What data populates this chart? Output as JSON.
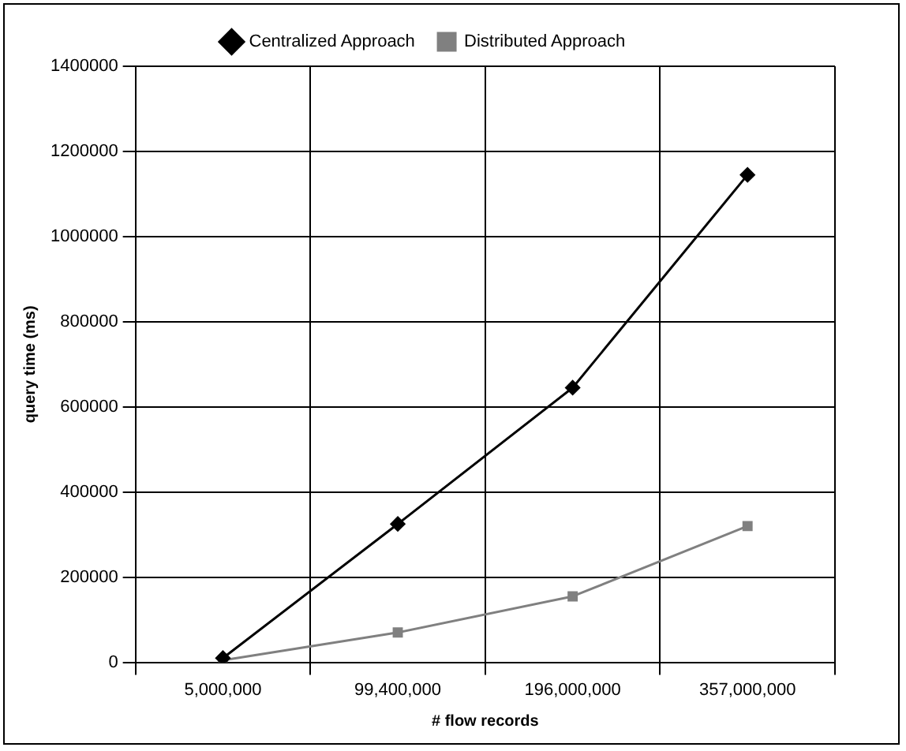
{
  "chart_data": {
    "type": "line",
    "xlabel": "# flow records",
    "ylabel": "query time (ms)",
    "categories": [
      "5,000,000",
      "99,400,000",
      "196,000,000",
      "357,000,000"
    ],
    "series": [
      {
        "name": "Distributed Approach",
        "color": "#808080",
        "marker": "square",
        "values": [
          5000,
          70000,
          155000,
          320000
        ]
      },
      {
        "name": "Centralized Approach",
        "color": "#000000",
        "marker": "diamond",
        "values": [
          10000,
          325000,
          645000,
          1145000
        ]
      }
    ],
    "ylim": [
      0,
      1400000
    ],
    "yticks": [
      0,
      200000,
      400000,
      600000,
      800000,
      1000000,
      1200000,
      1400000
    ],
    "grid": true,
    "legend": "top",
    "line_style": "solid"
  }
}
